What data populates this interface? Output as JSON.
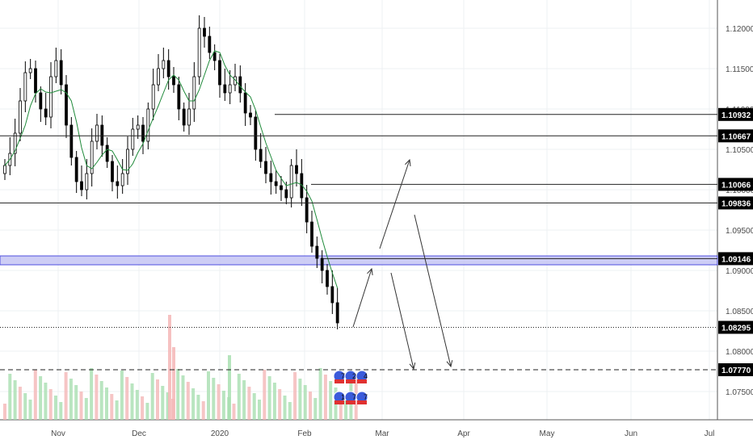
{
  "chart_data": {
    "type": "candlestick",
    "title": "",
    "xlabel": "",
    "ylabel": "",
    "ylim": [
      1.0715,
      1.1235
    ],
    "x_ticks": [
      "Nov",
      "Dec",
      "2020",
      "Feb",
      "Mar",
      "Apr",
      "May",
      "Jun",
      "Jul"
    ],
    "y_ticks": [
      "1.12000",
      "1.11500",
      "1.11000",
      "1.10500",
      "1.10000",
      "1.09500",
      "1.09000",
      "1.08500",
      "1.08000",
      "1.07500"
    ],
    "price_levels": [
      {
        "value": 1.10932,
        "label": "1.10932",
        "line": "solid"
      },
      {
        "value": 1.10667,
        "label": "1.10667",
        "line": "solid"
      },
      {
        "value": 1.10066,
        "label": "1.10066",
        "line": "solid"
      },
      {
        "value": 1.09836,
        "label": "1.09836",
        "line": "solid"
      },
      {
        "value": 1.09146,
        "label": "1.09146",
        "line": "solid"
      },
      {
        "value": 1.08295,
        "label": "1.08295",
        "line": "dotted"
      },
      {
        "value": 1.0777,
        "label": "1.07770",
        "line": "dashed"
      }
    ],
    "zone": {
      "low": 1.0907,
      "high": 1.0918,
      "color": "#3c3cdc"
    },
    "close_series": [
      1.103,
      1.1045,
      1.107,
      1.111,
      1.1145,
      1.115,
      1.112,
      1.11,
      1.109,
      1.114,
      1.116,
      1.113,
      1.108,
      1.104,
      1.101,
      1.1,
      1.102,
      1.106,
      1.108,
      1.1055,
      1.1035,
      1.101,
      1.1005,
      1.102,
      1.105,
      1.1075,
      1.108,
      1.106,
      1.11,
      1.113,
      1.115,
      1.116,
      1.114,
      1.113,
      1.11,
      1.108,
      1.11,
      1.114,
      1.12,
      1.119,
      1.117,
      1.116,
      1.113,
      1.112,
      1.113,
      1.114,
      1.112,
      1.1095,
      1.109,
      1.105,
      1.1035,
      1.102,
      1.101,
      1.1005,
      1.1,
      1.099,
      1.103,
      1.102,
      1.099,
      1.096,
      1.093,
      1.0915,
      1.09,
      1.088,
      1.086,
      1.0835
    ],
    "forecast_arrows": [
      {
        "from": [
          1.083,
          1.083
        ],
        "to": [
          1.0905,
          1.0905
        ]
      },
      {
        "from": [
          1.093,
          1.093
        ],
        "to": [
          1.105,
          1.105
        ]
      },
      {
        "from": [
          1.09,
          1.09
        ],
        "to": [
          1.0778,
          1.0778
        ]
      },
      {
        "from": [
          1.098,
          1.098
        ],
        "to": [
          1.0778,
          1.0778
        ]
      }
    ],
    "grid": true,
    "volume": true
  },
  "colors": {
    "up": "#000000",
    "down": "#000000",
    "ma": "#1f8a3a",
    "grid": "#eef0f3",
    "level_line": "#222222",
    "label_bg": "#000000",
    "zone_fill": "#c8c8f5",
    "vol_up": "#a8dfb0",
    "vol_down": "#f4b6b6"
  },
  "badges": {
    "row1": [
      "7",
      "2",
      "4"
    ],
    "row2": [
      "11",
      "7",
      "7"
    ]
  }
}
